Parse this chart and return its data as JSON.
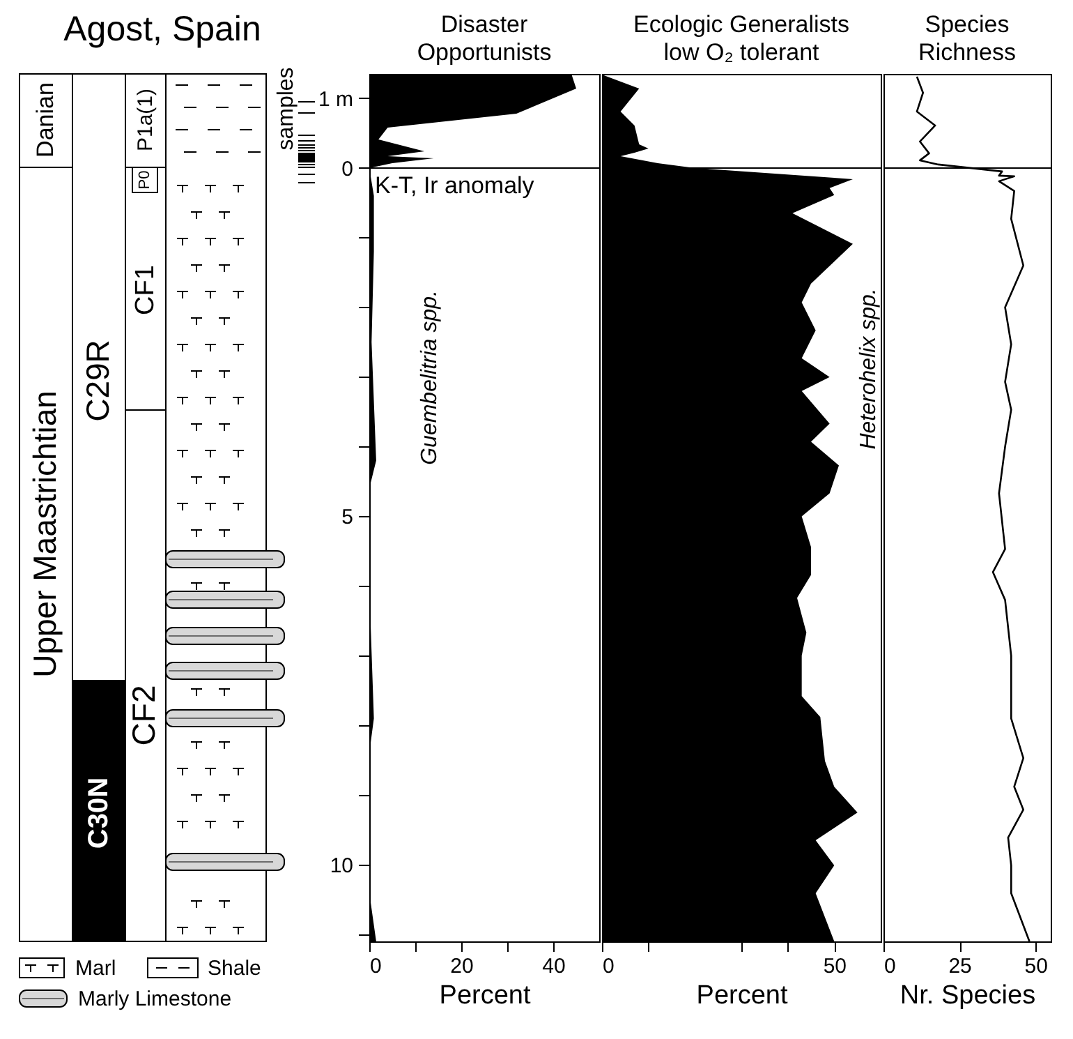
{
  "chart_data": [
    {
      "type": "other",
      "title": "Agost, Spain",
      "annotations": [
        "Danian",
        "Upper Maastrichtian",
        "C29R",
        "C30N",
        "P1a(1)",
        "P0",
        "CF1",
        "CF2",
        "samples",
        "Marl",
        "Shale",
        "Marly Limestone"
      ]
    },
    {
      "type": "area",
      "title": "Disaster Opportunists",
      "xlabel": "Percent",
      "orientation": "horizontal",
      "x": [
        -1.34,
        -1.14,
        -0.78,
        -0.58,
        -0.41,
        -0.24,
        -0.17,
        -0.14,
        -0.07,
        0,
        0.4,
        1.2,
        2.5,
        4.2,
        4.6,
        6,
        7.9,
        8.4,
        10.4,
        11.1
      ],
      "series": [
        {
          "name": "Guembelitria spp.",
          "color": "#000000",
          "values": [
            44,
            45,
            32,
            4,
            2,
            12,
            4,
            14,
            5,
            0,
            1,
            1,
            0.5,
            1.5,
            0,
            0,
            1,
            0,
            0,
            1.5
          ]
        }
      ],
      "xlim": [
        0,
        50
      ],
      "xticks": [
        0,
        {
          "value": 10,
          "label": null
        },
        20,
        {
          "value": 30,
          "label": null
        },
        40
      ],
      "ylim": [
        11.1,
        -1.35
      ],
      "yticks": [
        {
          "value": -1,
          "label": "1 m"
        },
        0,
        {
          "value": 1,
          "label": null
        },
        {
          "value": 2,
          "label": null
        },
        {
          "value": 3,
          "label": null
        },
        {
          "value": 4,
          "label": null
        },
        5,
        {
          "value": 6,
          "label": null
        },
        {
          "value": 7,
          "label": null
        },
        {
          "value": 8,
          "label": null
        },
        {
          "value": 9,
          "label": null
        },
        10,
        {
          "value": 11,
          "label": null
        }
      ],
      "ref_lines": [
        {
          "axis": "y",
          "value": 0,
          "label": "K-T, Ir anomaly"
        }
      ]
    },
    {
      "type": "area",
      "title": "Ecologic Generalists low O₂ tolerant",
      "xlabel": "Percent",
      "orientation": "horizontal",
      "tick_labels": "x",
      "x": [
        -1.34,
        -1.14,
        -0.81,
        -0.61,
        -0.34,
        -0.28,
        -0.22,
        -0.17,
        -0.07,
        0,
        0.16,
        0.29,
        0.39,
        0.65,
        1.09,
        1.66,
        1.93,
        2.33,
        2.73,
        3.0,
        3.2,
        3.67,
        3.93,
        4.27,
        4.67,
        5.0,
        5.44,
        5.84,
        6.17,
        6.67,
        7.0,
        7.58,
        7.88,
        8.51,
        8.88,
        9.25,
        9.65,
        10.01,
        10.41,
        11.1
      ],
      "series": [
        {
          "name": "Heterohelix spp.",
          "color": "#000000",
          "values": [
            0,
            8,
            4,
            7,
            8,
            10,
            7,
            4,
            12,
            20,
            54,
            49,
            50,
            41,
            54,
            45,
            43,
            46,
            43,
            49,
            43,
            49,
            45,
            51,
            49,
            43,
            45,
            45,
            42,
            44,
            43,
            43,
            47,
            48,
            50,
            55,
            46,
            50,
            46,
            50
          ]
        }
      ],
      "xlim": [
        0,
        60
      ],
      "xticks": [
        0,
        {
          "value": 10,
          "label": null
        },
        {
          "value": 30,
          "label": null
        },
        {
          "value": 40,
          "label": null
        },
        50
      ],
      "ylim": [
        11.1,
        -1.35
      ],
      "ref_lines": [
        {
          "axis": "y",
          "value": 0
        }
      ]
    },
    {
      "type": "line",
      "title": "Species Richness",
      "xlabel": "Nr. Species",
      "orientation": "horizontal",
      "tick_labels": "x",
      "x": [
        -1.31,
        -1.08,
        -0.81,
        -0.61,
        -0.38,
        -0.21,
        -0.11,
        -0.05,
        0.05,
        0.11,
        0.12,
        0.19,
        0.33,
        0.73,
        1.4,
        2.0,
        2.53,
        3.07,
        3.47,
        4.0,
        4.67,
        5.47,
        5.8,
        6.2,
        7.0,
        7.9,
        8.47,
        8.88,
        9.21,
        9.61,
        10.01,
        10.41,
        11.1
      ],
      "series": [
        {
          "color": "#000000",
          "values": [
            11,
            13,
            11,
            17,
            12,
            15,
            12,
            18,
            39,
            38,
            43,
            38,
            43,
            42,
            46,
            40,
            42,
            40,
            42,
            40,
            38,
            40,
            36,
            40,
            42,
            42,
            46,
            43,
            46,
            41,
            42,
            42,
            48
          ]
        }
      ],
      "xlim": [
        0,
        55
      ],
      "xticks": [
        0,
        25,
        50
      ],
      "ylim": [
        11.1,
        -1.35
      ],
      "ref_lines": [
        {
          "axis": "y",
          "value": 0
        }
      ]
    }
  ]
}
